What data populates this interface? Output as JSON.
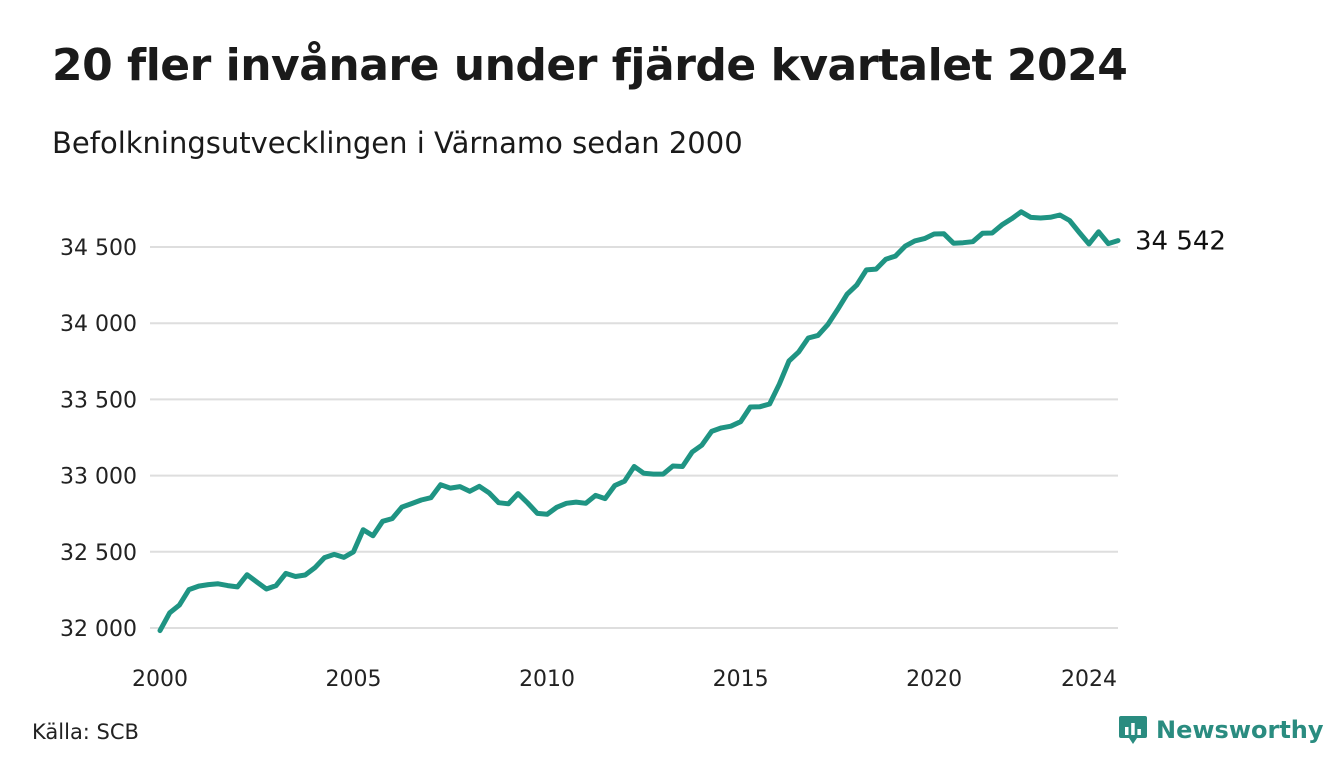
{
  "title": "20 fler invånare under fjärde kvartalet 2024",
  "subtitle": "Befolkningsutvecklingen i Värnamo sedan 2000",
  "source": "Källa: SCB",
  "brand": {
    "name": "Newsworthy",
    "icon": "newsworthy-logo-icon",
    "color": "#2a8c80"
  },
  "chart_data": {
    "type": "line",
    "title": "20 fler invånare under fjärde kvartalet 2024",
    "subtitle": "Befolkningsutvecklingen i Värnamo sedan 2000",
    "xlabel": "",
    "ylabel": "",
    "xlim": [
      2000,
      2024.75
    ],
    "ylim": [
      32000,
      34800
    ],
    "x_ticks": [
      2000,
      2005,
      2010,
      2015,
      2020,
      2024
    ],
    "y_ticks": [
      32000,
      32500,
      33000,
      33500,
      34000,
      34500
    ],
    "y_tick_labels": [
      "32 000",
      "32 500",
      "33 000",
      "33 500",
      "34 000",
      "34 500"
    ],
    "grid": "horizontal",
    "line_color": "#1f9483",
    "end_label": "34 542",
    "series": [
      {
        "x": [
          2000.0,
          2000.25,
          2000.5,
          2000.75,
          2001.0,
          2001.25,
          2001.5,
          2001.75,
          2002.0,
          2002.25,
          2002.5,
          2002.75,
          2003.0,
          2003.25,
          2003.5,
          2003.75,
          2004.0,
          2004.25,
          2004.5,
          2004.75,
          2005.0,
          2005.25,
          2005.5,
          2005.75,
          2006.0,
          2006.25,
          2006.5,
          2006.75,
          2007.0,
          2007.25,
          2007.5,
          2007.75,
          2008.0,
          2008.25,
          2008.5,
          2008.75,
          2009.0,
          2009.25,
          2009.5,
          2009.75,
          2010.0,
          2010.25,
          2010.5,
          2010.75,
          2011.0,
          2011.25,
          2011.5,
          2011.75,
          2012.0,
          2012.25,
          2012.5,
          2012.75,
          2013.0,
          2013.25,
          2013.5,
          2013.75,
          2014.0,
          2014.25,
          2014.5,
          2014.75,
          2015.0,
          2015.25,
          2015.5,
          2015.75,
          2016.0,
          2016.25,
          2016.5,
          2016.75,
          2017.0,
          2017.25,
          2017.5,
          2017.75,
          2018.0,
          2018.25,
          2018.5,
          2018.75,
          2019.0,
          2019.25,
          2019.5,
          2019.75,
          2020.0,
          2020.25,
          2020.5,
          2020.75,
          2021.0,
          2021.25,
          2021.5,
          2021.75,
          2022.0,
          2022.25,
          2022.5,
          2022.75,
          2023.0,
          2023.25,
          2023.5,
          2023.75,
          2024.0,
          2024.25,
          2024.5,
          2024.75
        ],
        "values": [
          31983,
          32100,
          32150,
          32252,
          32275,
          32285,
          32290,
          32278,
          32270,
          32350,
          32302,
          32256,
          32278,
          32358,
          32338,
          32348,
          32395,
          32462,
          32483,
          32463,
          32500,
          32645,
          32605,
          32700,
          32718,
          32793,
          32816,
          32840,
          32855,
          32940,
          32918,
          32928,
          32897,
          32930,
          32887,
          32822,
          32815,
          32882,
          32820,
          32752,
          32746,
          32792,
          32818,
          32826,
          32818,
          32870,
          32849,
          32935,
          32963,
          33060,
          33015,
          33010,
          33010,
          33063,
          33060,
          33155,
          33200,
          33290,
          33313,
          33324,
          33354,
          33450,
          33452,
          33470,
          33600,
          33752,
          33812,
          33903,
          33920,
          33990,
          34087,
          34190,
          34250,
          34350,
          34355,
          34420,
          34440,
          34505,
          34540,
          34555,
          34585,
          34587,
          34525,
          34528,
          34535,
          34590,
          34592,
          34645,
          34685,
          34731,
          34694,
          34690,
          34695,
          34710,
          34674,
          34595,
          34520,
          34600,
          34522,
          34542
        ]
      }
    ]
  }
}
